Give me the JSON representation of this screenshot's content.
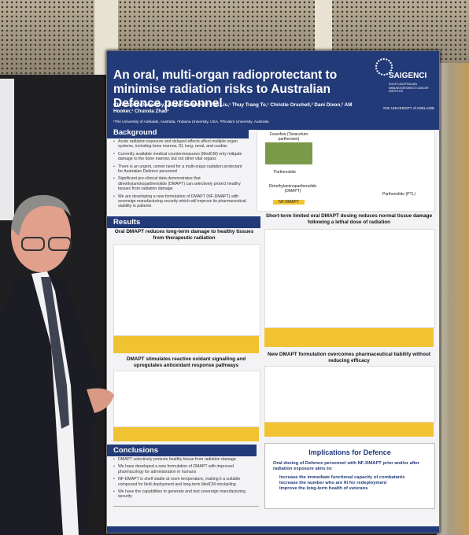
{
  "poster": {
    "title": "An oral, multi-organ radioprotectant to minimise radiation risks to Australian Defence personnel",
    "authors": "Christopher Sweeney,¹ Katherine Morel,¹ Yun Liu,¹ Thuy Trang To,¹ Christie Orschell,² Dani Dixon,³ AM Hooker,¹ Chunxia Zhao¹",
    "affiliations": "¹The University of Adelaide, Australia, ²Indiana University, USA, ³Flinders University, Australia",
    "logo": {
      "name": "SAIGENCI",
      "subtitle": "SOUTH AUSTRALIAN IMMUNOGENOMICS CANCER INSTITUTE",
      "university": "THE UNIVERSITY of ADELAIDE"
    },
    "background": {
      "heading": "Background",
      "bullets": [
        "Acute radiation exposure and delayed effects affect multiple organ systems, including bone marrow, GI, lung, renal, and cardiac",
        "Currently available medical countermeasures (MedCM) only mitigate damage to the bone marrow, but not other vital organs",
        "There is an urgent, unmet need for a multi-organ radiation protectant for Australian Defence personnel",
        "Significant pre-clinical data demonstrates that dimethylaminoparthenolide (DMAPT) can selectively protect healthy tissues from radiation damage",
        "We are developing a new formulation of DMAPT (NF-DMAPT) with sovereign manufacturing security which will improve its pharmaceutical stability in patients"
      ]
    },
    "figure": {
      "plant": "Feverfew (Tanacetum parthenium)",
      "compound1": "Parthenolide",
      "compound2": "Dimethylaminoparthenolide (DMAPT)",
      "compound3": "NF-DMAPT",
      "compound4": "Parthenolide (PTL)"
    },
    "results": {
      "heading": "Results",
      "panels": [
        "Oral DMAPT reduces long-term damage to healthy tissues from therapeutic radiation",
        "Short-term limited oral DMAPT dosing reduces normal tissue damage following a lethal dose of radiation",
        "DMAPT stimulates reactive oxidant signalling and upregulates antioxidant response pathways",
        "New DMAPT formulation overcomes pharmaceutical liability without reducing efficacy"
      ]
    },
    "conclusions": {
      "heading": "Conclusions",
      "bullets": [
        "DMAPT selectively protects healthy tissue from radiation damage",
        "We have developed a new formulation of DMAPT with improved pharmacology for administration in humans",
        "NF-DMAPT is shelf stable at room temperature, making it a suitable compound for field deployment and long-term MedCM stockpiling",
        "We have the capabilities to generate and test sovereign manufacturing security"
      ]
    },
    "implications": {
      "heading": "Implications for Defence",
      "intro": "Oral dosing of Defence personnel with NF-DMAPT prior and/or after radiation exposure aims to:",
      "items": [
        "Increase the immediate functional capacity of combatants",
        "Increase the number who are fit for redeployment",
        "Improve the long-term health of veterans"
      ]
    }
  }
}
